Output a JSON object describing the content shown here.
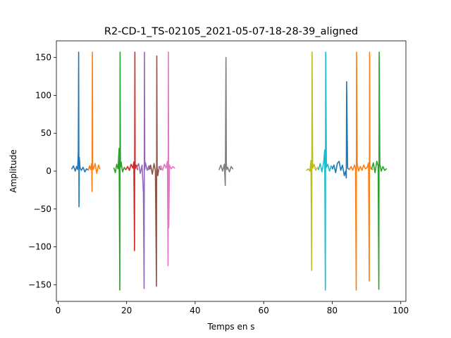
{
  "chart_data": {
    "type": "line",
    "title": "R2-CD-1_TS-02105_2021-05-07-18-28-39_aligned",
    "xlabel": "Temps en s",
    "ylabel": "Amplitude",
    "xlim": [
      -0.5,
      101.5
    ],
    "ylim": [
      -172,
      172
    ],
    "xticks": [
      0,
      20,
      40,
      60,
      80,
      100
    ],
    "yticks": [
      -150,
      -100,
      -50,
      0,
      50,
      100,
      150
    ],
    "grid": false,
    "legend": "none",
    "series": [
      {
        "color": "#1f77b4",
        "x": [
          4.0,
          4.5,
          5.0,
          5.4,
          5.7,
          5.9,
          6.0,
          6.1,
          6.2,
          6.4,
          6.8,
          7.3,
          7.8,
          8.3,
          8.6
        ],
        "y": [
          3,
          7,
          0,
          6,
          2,
          25,
          157,
          -47,
          18,
          4,
          1,
          5,
          -1,
          3,
          2
        ]
      },
      {
        "color": "#ff7f0e",
        "x": [
          8.8,
          9.2,
          9.5,
          9.8,
          9.9,
          10.0,
          10.1,
          10.3,
          10.8,
          11.3,
          11.8,
          12.2
        ],
        "y": [
          1,
          7,
          2,
          10,
          -27,
          157,
          8,
          2,
          10,
          -3,
          8,
          3
        ]
      },
      {
        "color": "#2ca02c",
        "x": [
          16.3,
          16.7,
          17.1,
          17.5,
          17.8,
          18.0,
          18.1,
          18.2,
          18.4,
          18.8,
          19.3,
          19.7
        ],
        "y": [
          4,
          -2,
          9,
          3,
          30,
          -157,
          157,
          5,
          12,
          -1,
          5,
          2
        ]
      },
      {
        "color": "#d62728",
        "x": [
          19.8,
          20.3,
          20.8,
          21.3,
          21.8,
          22.1,
          22.3,
          22.4,
          22.5,
          22.8,
          23.2
        ],
        "y": [
          2,
          6,
          1,
          9,
          4,
          12,
          -105,
          157,
          3,
          8,
          2
        ]
      },
      {
        "color": "#9467bd",
        "x": [
          23.0,
          23.5,
          24.0,
          24.5,
          24.9,
          25.1,
          25.2,
          25.3,
          25.5,
          26.0,
          26.5,
          27.0
        ],
        "y": [
          5,
          10,
          -3,
          8,
          -28,
          -155,
          157,
          2,
          11,
          1,
          7,
          3
        ]
      },
      {
        "color": "#8c564b",
        "x": [
          26.5,
          27.0,
          27.5,
          28.0,
          28.4,
          28.7,
          28.8,
          28.9,
          29.1,
          29.5,
          30.0
        ],
        "y": [
          2,
          8,
          -4,
          10,
          0,
          -152,
          152,
          5,
          -6,
          6,
          2
        ]
      },
      {
        "color": "#e377c2",
        "x": [
          29.5,
          30.0,
          30.5,
          31.0,
          31.5,
          31.9,
          32.1,
          32.2,
          32.3,
          32.5,
          33.0,
          33.5,
          34.0
        ],
        "y": [
          3,
          7,
          1,
          9,
          4,
          13,
          -125,
          157,
          -75,
          8,
          3,
          6,
          4
        ]
      },
      {
        "color": "#7f7f7f",
        "x": [
          47.0,
          47.5,
          48.0,
          48.5,
          48.8,
          49.0,
          49.1,
          49.2,
          49.5,
          50.0,
          50.5,
          51.0
        ],
        "y": [
          2,
          8,
          0,
          9,
          -19,
          150,
          10,
          2,
          5,
          -1,
          6,
          3
        ]
      },
      {
        "color": "#bcbd22",
        "x": [
          72.5,
          73.0,
          73.5,
          73.8,
          74.0,
          74.1,
          74.3,
          74.7,
          75.2,
          75.7,
          76.0
        ],
        "y": [
          1,
          3,
          0,
          14,
          -131,
          157,
          4,
          9,
          1,
          5,
          2
        ]
      },
      {
        "color": "#17becf",
        "x": [
          76.0,
          76.5,
          77.0,
          77.5,
          77.8,
          78.0,
          78.1,
          78.3,
          78.7,
          79.2,
          79.7,
          80.2
        ],
        "y": [
          2,
          10,
          -1,
          12,
          28,
          -157,
          157,
          5,
          9,
          0,
          7,
          3
        ]
      },
      {
        "color": "#1f77b4",
        "x": [
          80.0,
          80.5,
          81.0,
          81.5,
          82.0,
          82.5,
          83.0,
          83.5,
          83.9,
          84.1,
          84.2,
          84.5,
          85.0
        ],
        "y": [
          3,
          8,
          -2,
          10,
          13,
          1,
          8,
          -6,
          0,
          -9,
          118,
          4,
          2
        ]
      },
      {
        "color": "#ff7f0e",
        "x": [
          85.0,
          85.5,
          86.0,
          86.5,
          86.8,
          87.0,
          87.1,
          87.3,
          87.7,
          88.2,
          88.7,
          89.2,
          89.7,
          90.2,
          90.6,
          90.8,
          90.9,
          91.0,
          91.3,
          91.8
        ],
        "y": [
          2,
          6,
          1,
          8,
          4,
          -157,
          157,
          9,
          0,
          6,
          1,
          8,
          3,
          5,
          11,
          -145,
          157,
          7,
          3,
          2
        ]
      },
      {
        "color": "#2ca02c",
        "x": [
          91.5,
          92.0,
          92.5,
          93.0,
          93.4,
          93.6,
          93.7,
          93.9,
          94.3,
          94.8,
          95.3,
          95.8
        ],
        "y": [
          3,
          11,
          -2,
          13,
          7,
          -156,
          157,
          9,
          0,
          6,
          1,
          3
        ]
      }
    ]
  }
}
